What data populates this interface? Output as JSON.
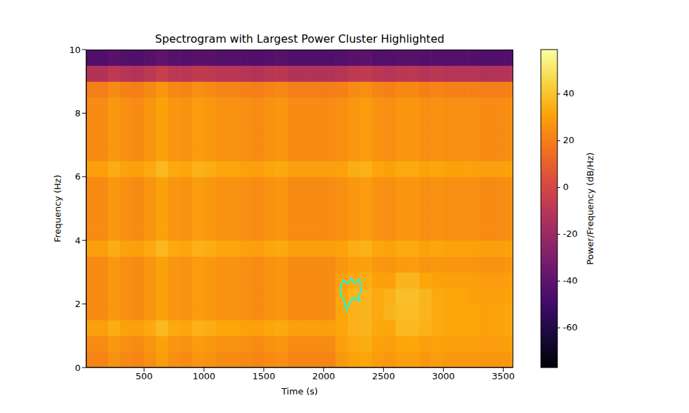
{
  "chart_data": {
    "type": "heatmap",
    "title": "Spectrogram with Largest Power Cluster Highlighted",
    "x_label": "Time (s)",
    "y_label": "Frequency (Hz)",
    "xlim": [
      16,
      3584
    ],
    "xticks": [
      500,
      1000,
      1500,
      2000,
      2500,
      3000,
      3500
    ],
    "ylim": [
      0,
      10
    ],
    "yticks": [
      0,
      2,
      4,
      6,
      8,
      10
    ],
    "x": [
      0,
      100,
      200,
      300,
      400,
      500,
      600,
      700,
      800,
      900,
      1000,
      1100,
      1200,
      1300,
      1400,
      1500,
      1600,
      1700,
      1800,
      1900,
      2000,
      2100,
      2200,
      2300,
      2400,
      2500,
      2600,
      2700,
      2800,
      2900,
      3000,
      3100,
      3200,
      3300,
      3400,
      3500
    ],
    "y": [
      0,
      0.5,
      1,
      1.5,
      2,
      2.5,
      3,
      3.5,
      4,
      4.5,
      5,
      5.5,
      6,
      6.5,
      7,
      7.5,
      8,
      8.5,
      9,
      9.5
    ],
    "z": [
      [
        22,
        22,
        26,
        23,
        22,
        25,
        29,
        25,
        24,
        27,
        26,
        24,
        24,
        23,
        22,
        24,
        25,
        22,
        22,
        22,
        22,
        28,
        31,
        32,
        29,
        28,
        30,
        30,
        28,
        29,
        28,
        28,
        28,
        27,
        27,
        28
      ],
      [
        24,
        24,
        28,
        25,
        24,
        27,
        31,
        27,
        26,
        29,
        28,
        26,
        26,
        25,
        24,
        26,
        27,
        24,
        24,
        24,
        24,
        30,
        33,
        34,
        31,
        30,
        32,
        32,
        30,
        31,
        30,
        30,
        30,
        29,
        29,
        30
      ],
      [
        30,
        30,
        34,
        31,
        30,
        33,
        37,
        33,
        32,
        35,
        34,
        32,
        32,
        31,
        30,
        32,
        33,
        30,
        30,
        30,
        30,
        32,
        35,
        36,
        33,
        32,
        37,
        37,
        35,
        33,
        32,
        32,
        32,
        31,
        31,
        32
      ],
      [
        24,
        24,
        28,
        25,
        24,
        27,
        31,
        27,
        26,
        29,
        28,
        26,
        26,
        25,
        24,
        26,
        27,
        24,
        24,
        24,
        24,
        32,
        35,
        36,
        33,
        36,
        38,
        38,
        36,
        33,
        32,
        32,
        32,
        31,
        31,
        32
      ],
      [
        24,
        24,
        28,
        25,
        24,
        27,
        31,
        27,
        26,
        29,
        28,
        26,
        26,
        25,
        24,
        26,
        27,
        24,
        24,
        24,
        24,
        32,
        36,
        36,
        33,
        35,
        39,
        39,
        36,
        33,
        32,
        32,
        31,
        30,
        30,
        31
      ],
      [
        24,
        24,
        28,
        25,
        24,
        27,
        31,
        27,
        26,
        29,
        28,
        26,
        26,
        25,
        24,
        26,
        27,
        24,
        24,
        24,
        24,
        30,
        33,
        34,
        31,
        30,
        36,
        36,
        32,
        31,
        30,
        30,
        30,
        29,
        29,
        30
      ],
      [
        24,
        24,
        28,
        25,
        24,
        27,
        31,
        27,
        26,
        29,
        28,
        26,
        26,
        25,
        24,
        26,
        27,
        24,
        24,
        24,
        24,
        27,
        30,
        31,
        28,
        27,
        29,
        29,
        27,
        28,
        27,
        27,
        27,
        26,
        26,
        27
      ],
      [
        30,
        30,
        34,
        31,
        30,
        33,
        37,
        33,
        32,
        35,
        34,
        32,
        32,
        31,
        30,
        32,
        33,
        30,
        30,
        30,
        30,
        31,
        34,
        35,
        32,
        31,
        33,
        33,
        31,
        32,
        31,
        31,
        31,
        30,
        30,
        31
      ],
      [
        24,
        24,
        28,
        25,
        24,
        27,
        31,
        27,
        26,
        29,
        28,
        26,
        26,
        25,
        24,
        26,
        27,
        24,
        24,
        24,
        24,
        25,
        28,
        29,
        26,
        25,
        27,
        27,
        25,
        26,
        25,
        25,
        25,
        24,
        24,
        25
      ],
      [
        24,
        24,
        28,
        25,
        24,
        27,
        31,
        27,
        26,
        29,
        28,
        26,
        26,
        25,
        24,
        26,
        27,
        24,
        24,
        24,
        24,
        25,
        28,
        29,
        26,
        25,
        27,
        27,
        25,
        26,
        25,
        25,
        25,
        24,
        24,
        25
      ],
      [
        24,
        24,
        28,
        25,
        24,
        27,
        31,
        27,
        26,
        29,
        28,
        26,
        26,
        25,
        24,
        26,
        27,
        24,
        24,
        24,
        24,
        25,
        28,
        29,
        26,
        25,
        27,
        27,
        25,
        26,
        25,
        25,
        25,
        24,
        24,
        25
      ],
      [
        24,
        24,
        28,
        25,
        24,
        27,
        31,
        27,
        26,
        29,
        28,
        26,
        26,
        25,
        24,
        26,
        27,
        24,
        24,
        24,
        24,
        25,
        28,
        29,
        26,
        25,
        27,
        27,
        25,
        26,
        25,
        25,
        25,
        24,
        24,
        25
      ],
      [
        30,
        30,
        34,
        31,
        30,
        33,
        37,
        33,
        32,
        35,
        34,
        32,
        32,
        31,
        30,
        32,
        33,
        30,
        30,
        30,
        30,
        31,
        34,
        35,
        32,
        31,
        33,
        33,
        31,
        32,
        31,
        31,
        31,
        30,
        30,
        31
      ],
      [
        24,
        24,
        28,
        25,
        24,
        27,
        31,
        27,
        26,
        29,
        28,
        26,
        26,
        25,
        24,
        26,
        27,
        24,
        24,
        24,
        24,
        25,
        28,
        29,
        26,
        25,
        27,
        27,
        25,
        26,
        25,
        25,
        25,
        24,
        24,
        25
      ],
      [
        24,
        24,
        28,
        25,
        24,
        27,
        31,
        27,
        26,
        29,
        28,
        26,
        26,
        25,
        24,
        26,
        27,
        24,
        24,
        24,
        24,
        25,
        28,
        29,
        26,
        25,
        27,
        27,
        25,
        26,
        25,
        25,
        25,
        24,
        24,
        25
      ],
      [
        24,
        24,
        28,
        25,
        24,
        27,
        31,
        27,
        26,
        29,
        28,
        26,
        26,
        25,
        24,
        26,
        27,
        24,
        24,
        24,
        24,
        25,
        28,
        29,
        26,
        25,
        27,
        27,
        25,
        26,
        25,
        25,
        25,
        24,
        24,
        25
      ],
      [
        24,
        24,
        28,
        25,
        24,
        27,
        31,
        27,
        26,
        29,
        28,
        26,
        26,
        25,
        24,
        26,
        27,
        24,
        24,
        24,
        24,
        25,
        28,
        29,
        26,
        25,
        27,
        27,
        25,
        26,
        25,
        25,
        25,
        24,
        24,
        25
      ],
      [
        20,
        20,
        24,
        21,
        20,
        23,
        27,
        23,
        22,
        25,
        24,
        22,
        22,
        21,
        20,
        22,
        23,
        20,
        20,
        20,
        20,
        21,
        24,
        25,
        22,
        21,
        23,
        23,
        21,
        22,
        21,
        21,
        21,
        20,
        20,
        21
      ],
      [
        -12,
        -12,
        -8,
        -11,
        -12,
        -9,
        -5,
        -9,
        -10,
        -7,
        -8,
        -10,
        -10,
        -11,
        -12,
        -10,
        -9,
        -12,
        -12,
        -12,
        -12,
        -11,
        -8,
        -7,
        -10,
        -11,
        -9,
        -9,
        -11,
        -10,
        -11,
        -11,
        -11,
        -12,
        -12,
        -11
      ],
      [
        -45,
        -45,
        -42,
        -44,
        -45,
        -43,
        -40,
        -43,
        -44,
        -42,
        -42,
        -44,
        -44,
        -44,
        -45,
        -44,
        -43,
        -45,
        -45,
        -45,
        -45,
        -44,
        -42,
        -41,
        -44,
        -44,
        -43,
        -43,
        -44,
        -44,
        -44,
        -44,
        -44,
        -45,
        -45,
        -44
      ]
    ],
    "colorbar": {
      "label": "Power/Frequency (dB/Hz)",
      "lim": [
        -77,
        59
      ],
      "ticks": [
        -60,
        -40,
        -20,
        0,
        20,
        40
      ]
    },
    "highlight": {
      "color": "#00ffff",
      "x": [
        2140,
        2160,
        2200,
        2230,
        2260,
        2300,
        2310,
        2290,
        2300,
        2250,
        2210,
        2190,
        2170,
        2140,
        2140
      ],
      "y": [
        2.5,
        2.75,
        2.65,
        2.8,
        2.65,
        2.8,
        2.4,
        2.2,
        2.1,
        2.2,
        2.0,
        1.8,
        2.1,
        2.3,
        2.5
      ]
    }
  }
}
